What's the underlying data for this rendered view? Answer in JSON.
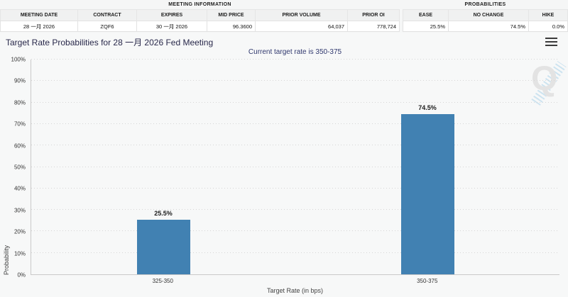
{
  "meeting_info": {
    "section_title": "MEETING INFORMATION",
    "columns": [
      "MEETING DATE",
      "CONTRACT",
      "EXPIRES",
      "MID PRICE",
      "PRIOR VOLUME",
      "PRIOR OI"
    ],
    "values": [
      "28 一月 2026",
      "ZQF6",
      "30 一月 2026",
      "96.3600",
      "64,037",
      "778,724"
    ]
  },
  "probabilities": {
    "section_title": "PROBABILITIES",
    "columns": [
      "EASE",
      "NO CHANGE",
      "HIKE"
    ],
    "values": [
      "25.5%",
      "74.5%",
      "0.0%"
    ]
  },
  "chart": {
    "menu_icon": "hamburger-menu-icon",
    "watermark_text": "Q"
  },
  "chart_data": {
    "type": "bar",
    "title": "Target Rate Probabilities for 28 一月 2026 Fed Meeting",
    "subtitle": "Current target rate is 350-375",
    "categories": [
      "325-350",
      "350-375"
    ],
    "values": [
      25.5,
      74.5
    ],
    "value_labels": [
      "25.5%",
      "74.5%"
    ],
    "xlabel": "Target Rate (in bps)",
    "ylabel": "Probability",
    "ylim": [
      0,
      100
    ],
    "ytick_step": 10,
    "ytick_suffix": "%",
    "grid": "dotted-horizontal",
    "legend": "none",
    "bar_color": "#4181b2"
  },
  "colors": {
    "page_bg": "#f5f6f6",
    "bar": "#4181b2",
    "title_text": "#28284a",
    "subtitle_text": "#30386e",
    "axis_line": "#c9c9c9",
    "watermark_stripe": "#c7e0ef"
  }
}
